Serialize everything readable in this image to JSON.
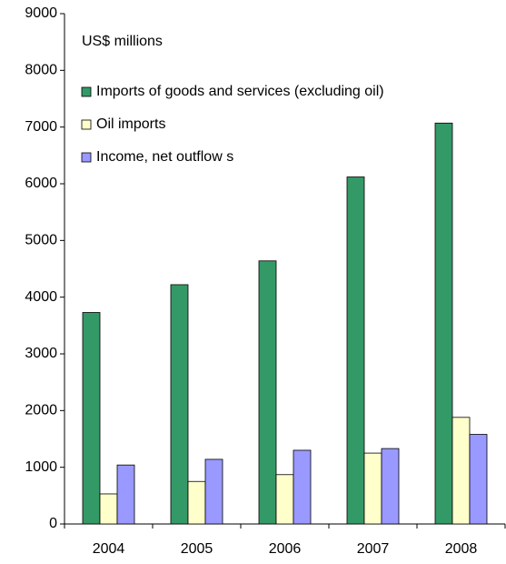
{
  "chart_data": {
    "type": "bar",
    "subtitle": "US$ millions",
    "categories": [
      "2004",
      "2005",
      "2006",
      "2007",
      "2008"
    ],
    "series": [
      {
        "name": "Imports of goods and services (excluding oil)",
        "color": "#339966",
        "values": [
          3730,
          4220,
          4640,
          6120,
          7070
        ]
      },
      {
        "name": "Oil imports",
        "color": "#ffffcc",
        "values": [
          530,
          750,
          870,
          1250,
          1880
        ]
      },
      {
        "name": "Income, net outflow s",
        "color": "#9999ff",
        "values": [
          1040,
          1140,
          1300,
          1330,
          1580
        ]
      }
    ],
    "ylim": [
      0,
      9000
    ],
    "yticks": [
      0,
      1000,
      2000,
      3000,
      4000,
      5000,
      6000,
      7000,
      8000,
      9000
    ],
    "grid": false,
    "legend": "top-left"
  }
}
